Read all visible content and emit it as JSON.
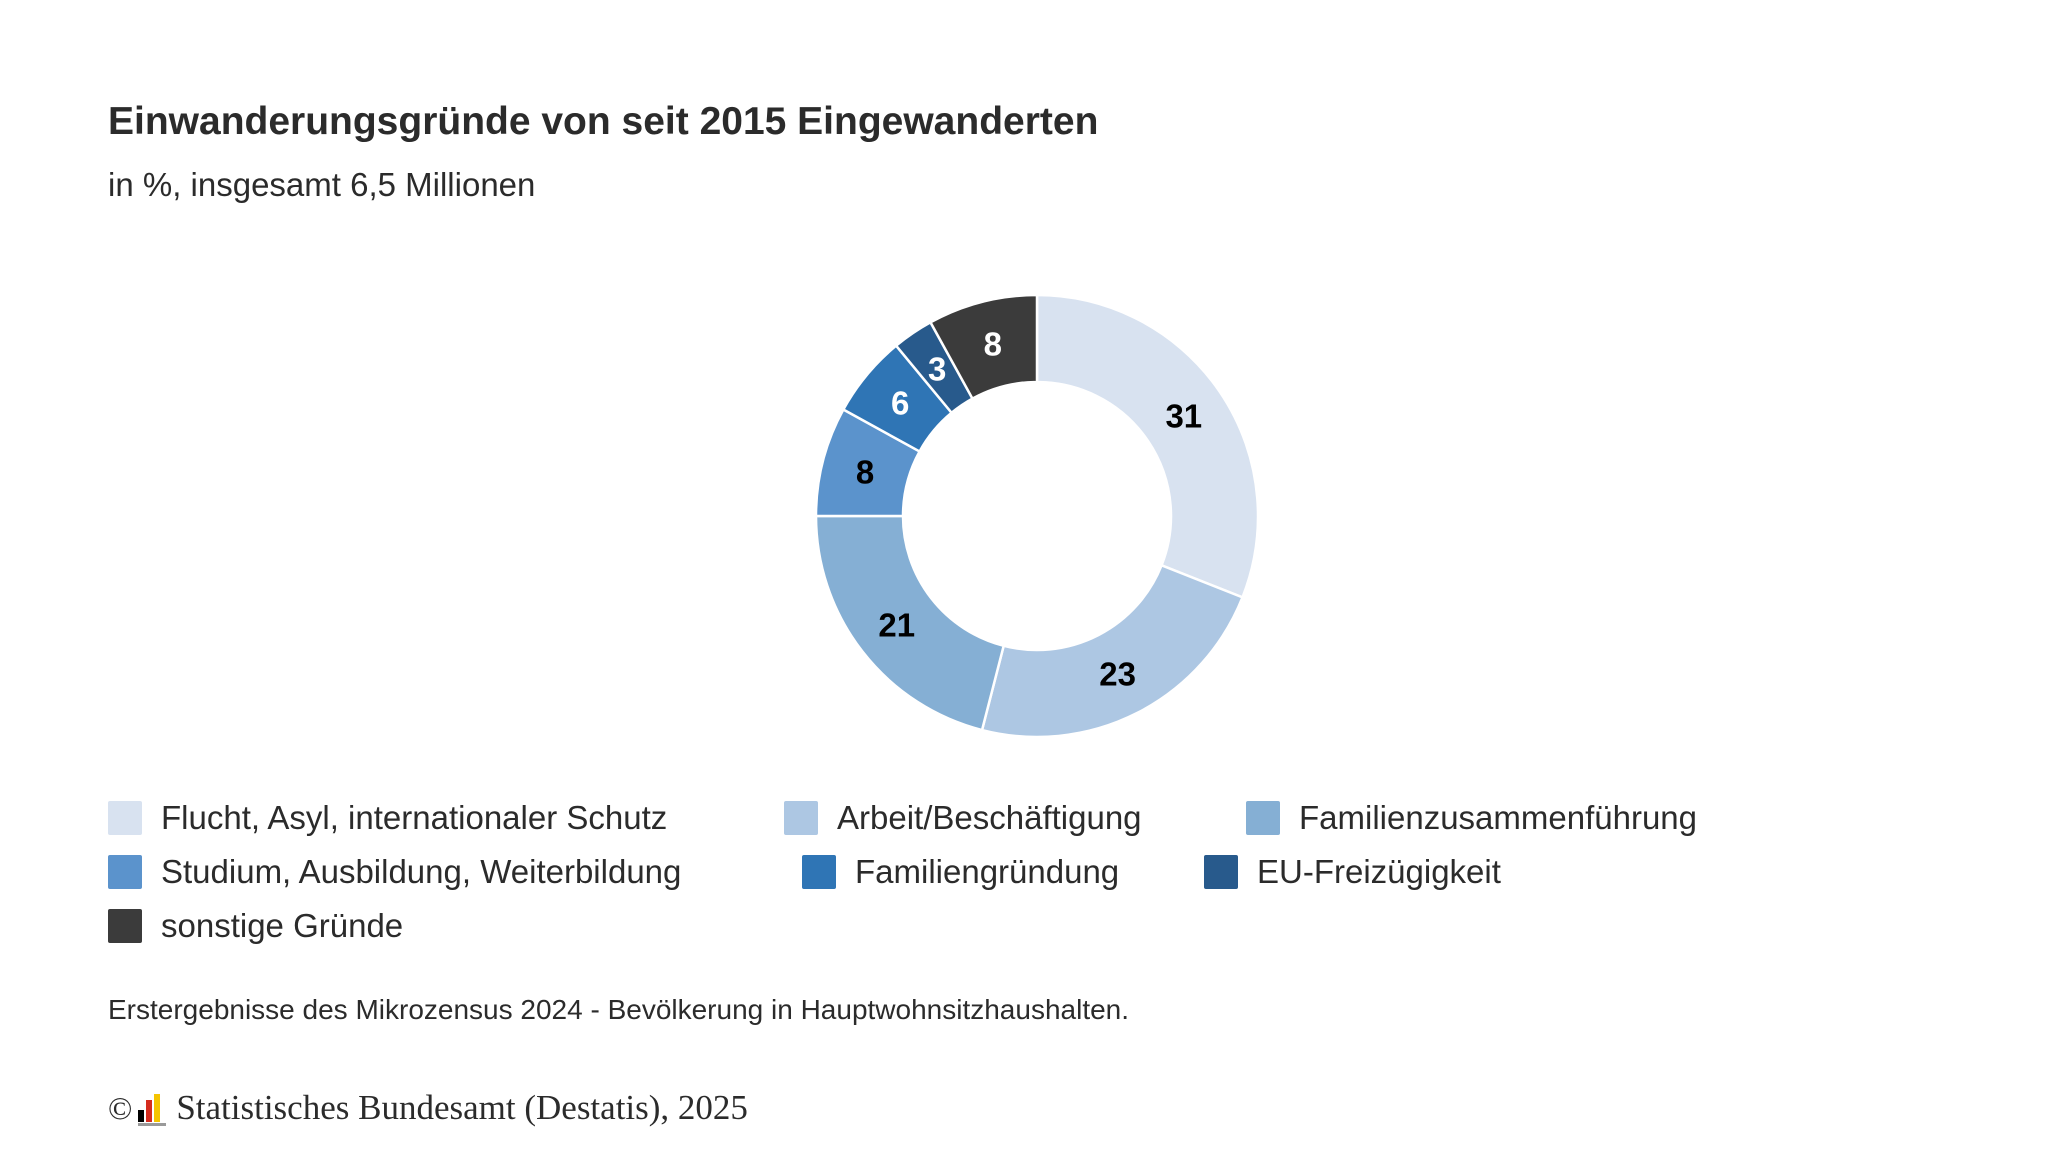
{
  "title": "Einwanderungsgründe von seit 2015 Eingewanderten",
  "subtitle": "in %, insgesamt 6,5 Millionen",
  "chart_data": {
    "type": "pie",
    "variant": "donut",
    "categories": [
      "Flucht, Asyl, internationaler Schutz",
      "Arbeit/Beschäftigung",
      "Familienzusammenführung",
      "Studium, Ausbildung, Weiterbildung",
      "Familiengründung",
      "EU-Freizügigkeit",
      "sonstige Gründe"
    ],
    "values": [
      31,
      23,
      21,
      8,
      6,
      3,
      8
    ],
    "colors": [
      "#d8e2f0",
      "#adc7e3",
      "#85afd4",
      "#5b93cc",
      "#2f75b5",
      "#285a8c",
      "#3b3b3b"
    ],
    "label_colors": [
      "#000000",
      "#000000",
      "#000000",
      "#000000",
      "#ffffff",
      "#ffffff",
      "#ffffff"
    ],
    "legend_position": "bottom"
  },
  "source": "Erstergebnisse des Mikrozensus 2024 - Bevölkerung in Hauptwohnsitzhaushalten.",
  "copyright": {
    "symbol": "©",
    "text": "Statistisches Bundesamt (Destatis), 2025",
    "logo_icon": "destatis-logo-icon"
  }
}
